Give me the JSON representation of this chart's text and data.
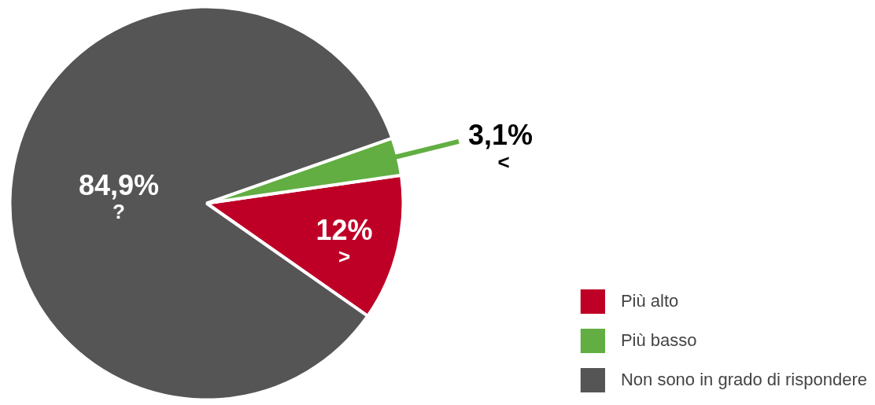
{
  "chart_data": {
    "type": "pie",
    "categories": [
      "Più alto",
      "Più basso",
      "Non sono in grado di rispondere"
    ],
    "values": [
      12,
      3.1,
      84.9
    ],
    "colors": [
      "#be0027",
      "#62ae42",
      "#555555"
    ],
    "value_labels": [
      "12%",
      "3,1%",
      "84,9%"
    ],
    "annotations": [
      ">",
      "<",
      "?"
    ],
    "legend": "bottom right"
  }
}
